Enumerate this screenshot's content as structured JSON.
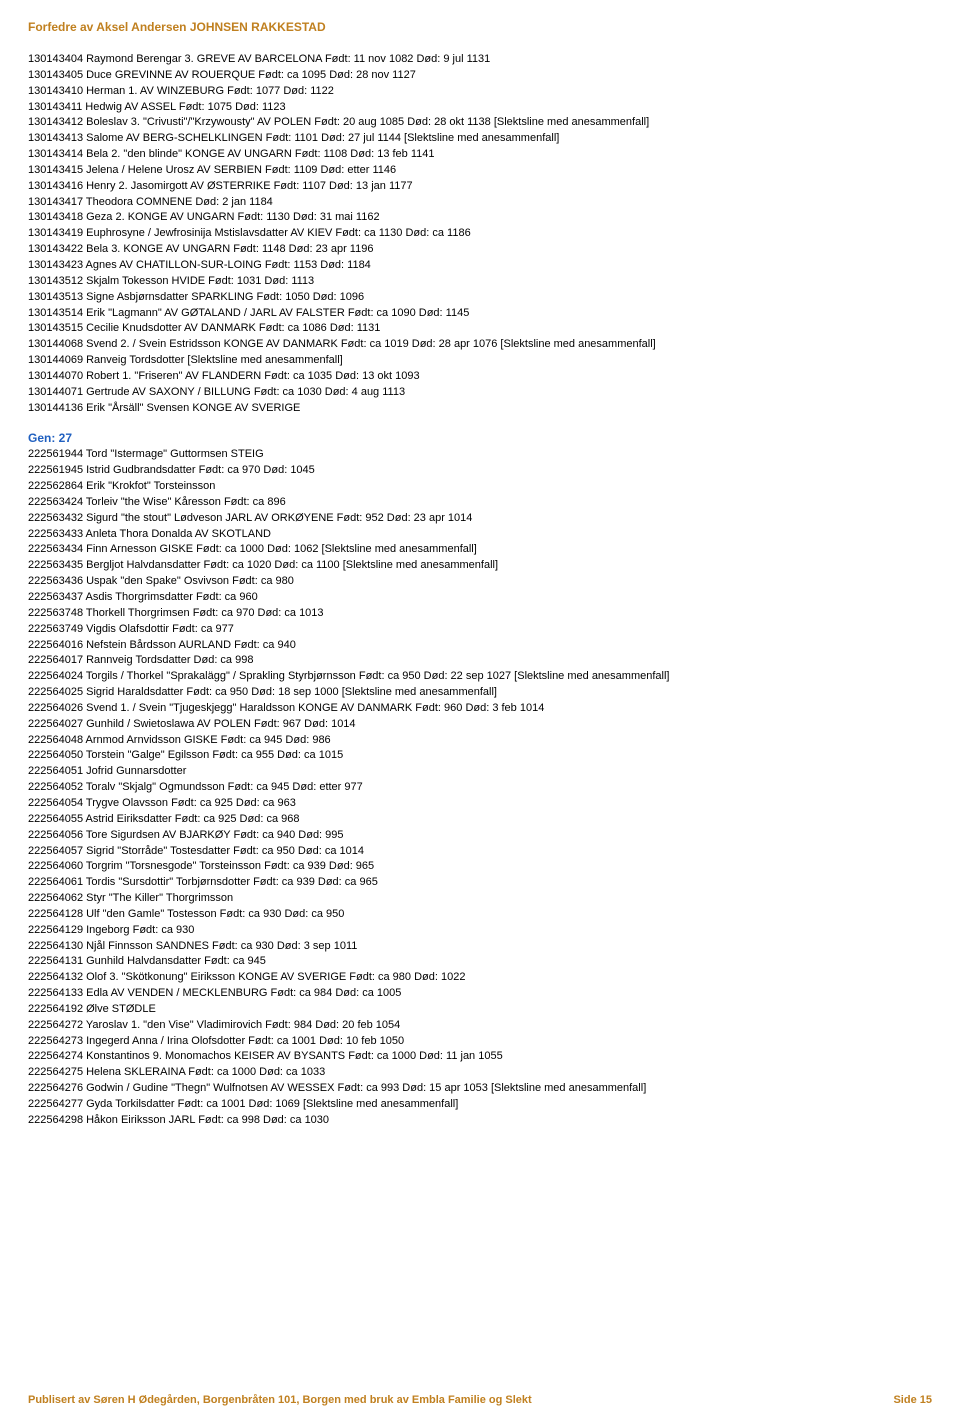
{
  "header": "Forfedre av  Aksel Andersen JOHNSEN RAKKESTAD",
  "block1": [
    "130143404  Raymond Berengar 3. GREVE AV BARCELONA     Født: 11 nov 1082   Død: 9 jul 1131",
    "130143405  Duce GREVINNE AV ROUERQUE     Født: ca 1095   Død: 28 nov 1127",
    "130143410  Herman 1. AV WINZEBURG     Født: 1077   Død: 1122",
    "130143411  Hedwig AV ASSEL     Født: 1075   Død: 1123",
    "130143412  Boleslav 3. \"Crivusti\"/\"Krzywousty\" AV POLEN     Født: 20 aug 1085   Død: 28 okt 1138       [Slektsline med anesammenfall]",
    "130143413  Salome AV BERG-SCHELKLINGEN     Født: 1101   Død: 27 jul 1144       [Slektsline med anesammenfall]",
    "130143414  Bela 2. \"den blinde\" KONGE AV UNGARN     Født: 1108   Død: 13 feb 1141",
    "130143415  Jelena / Helene Urosz AV SERBIEN     Født: 1109   Død: etter 1146",
    "130143416  Henry 2. Jasomirgott AV ØSTERRIKE     Født: 1107   Død: 13 jan 1177",
    "130143417  Theodora COMNENE     Død: 2 jan 1184",
    "130143418  Geza 2. KONGE AV UNGARN     Født: 1130   Død: 31 mai 1162",
    "130143419  Euphrosyne / Jewfrosinija Mstislavsdatter AV KIEV     Født: ca 1130   Død: ca 1186",
    "130143422  Bela 3. KONGE AV UNGARN     Født: 1148   Død: 23 apr 1196",
    "130143423  Agnes AV CHATILLON-SUR-LOING     Født: 1153   Død: 1184",
    "130143512  Skjalm Tokesson HVIDE     Født: 1031   Død: 1113",
    "130143513  Signe Asbjørnsdatter SPARKLING     Født: 1050   Død: 1096",
    "130143514  Erik \"Lagmann\" AV GØTALAND / JARL AV FALSTER     Født: ca 1090   Død: 1145",
    "130143515  Cecilie Knudsdotter AV DANMARK     Født: ca 1086   Død: 1131",
    "130144068  Svend 2. / Svein Estridsson KONGE AV DANMARK     Født: ca 1019   Død: 28 apr 1076       [Slektsline med anesammenfall]",
    "130144069  Ranveig Tordsdotter       [Slektsline med anesammenfall]",
    "130144070  Robert 1. \"Friseren\" AV FLANDERN     Født: ca 1035   Død: 13 okt 1093",
    "130144071  Gertrude AV SAXONY / BILLUNG     Født: ca 1030   Død: 4 aug 1113",
    "130144136  Erik \"Årsäll\" Svensen KONGE AV SVERIGE"
  ],
  "gen_header": "Gen:  27",
  "block2": [
    "222561944  Tord \"Istermage\" Guttormsen STEIG",
    "222561945  Istrid Gudbrandsdatter     Født: ca 970   Død: 1045",
    "222562864  Erik \"Krokfot\" Torsteinsson",
    "222563424  Torleiv \"the Wise\" Kåresson     Født: ca 896",
    "222563432  Sigurd \"the stout\" Lødveson JARL AV ORKØYENE     Født: 952   Død: 23 apr 1014",
    "222563433  Anleta Thora Donalda AV SKOTLAND",
    "222563434  Finn Arnesson GISKE     Født: ca 1000   Død: 1062       [Slektsline med anesammenfall]",
    "222563435  Bergljot Halvdansdatter     Født: ca 1020   Død: ca 1100       [Slektsline med anesammenfall]",
    "222563436  Uspak \"den Spake\" Osvivson     Født: ca 980",
    "222563437  Asdis Thorgrimsdatter     Født: ca 960",
    "222563748  Thorkell Thorgrimsen     Født: ca 970   Død: ca 1013",
    "222563749  Vigdis Olafsdottir     Født: ca 977",
    "222564016  Nefstein Bårdsson AURLAND     Født: ca 940",
    "222564017  Rannveig Tordsdatter     Død: ca 998",
    "222564024  Torgils / Thorkel \"Sprakalägg\" / Sprakling Styrbjørnsson     Født: ca 950   Død: 22 sep 1027       [Slektsline med anesammenfall]",
    "222564025  Sigrid Haraldsdatter     Født: ca 950   Død: 18 sep 1000       [Slektsline med anesammenfall]",
    "222564026  Svend 1. / Svein \"Tjugeskjegg\" Haraldsson KONGE AV DANMARK     Født: 960   Død: 3 feb 1014",
    "222564027  Gunhild / Swietoslawa AV POLEN     Født: 967   Død: 1014",
    "222564048  Arnmod Arnvidsson GISKE     Født: ca 945   Død: 986",
    "222564050  Torstein \"Galge\" Egilsson     Født: ca 955   Død: ca 1015",
    "222564051  Jofrid Gunnarsdotter",
    "222564052  Toralv \"Skjalg\" Ogmundsson     Født: ca 945   Død: etter 977",
    "222564054  Trygve Olavsson     Født: ca 925   Død: ca 963",
    "222564055  Astrid Eiriksdatter     Født: ca 925   Død: ca 968",
    "222564056  Tore Sigurdsen AV BJARKØY     Født: ca 940   Død: 995",
    "222564057  Sigrid \"Storråde\" Tostesdatter     Født: ca 950   Død: ca 1014",
    "222564060  Torgrim \"Torsnesgode\" Torsteinsson     Født: ca 939   Død: 965",
    "222564061  Tordis \"Sursdottir\" Torbjørnsdotter     Født: ca 939   Død: ca 965",
    "222564062  Styr \"The Killer\" Thorgrimsson",
    "222564128  Ulf \"den Gamle\" Tostesson     Født: ca 930   Død: ca 950",
    "222564129  Ingeborg     Født: ca 930",
    "222564130  Njål Finnsson SANDNES     Født: ca 930   Død: 3 sep 1011",
    "222564131  Gunhild Halvdansdatter     Født: ca 945",
    "222564132  Olof 3. \"Skötkonung\" Eiriksson KONGE AV SVERIGE     Født: ca 980   Død: 1022",
    "222564133  Edla AV VENDEN / MECKLENBURG     Født: ca 984   Død: ca 1005",
    "222564192  Ølve STØDLE",
    "222564272  Yaroslav 1. \"den Vise\" Vladimirovich     Født: 984   Død: 20 feb 1054",
    "222564273  Ingegerd Anna / Irina Olofsdotter     Født: ca 1001   Død: 10 feb 1050",
    "222564274  Konstantinos 9. Monomachos KEISER AV BYSANTS     Født: ca 1000   Død: 11 jan 1055",
    "222564275  Helena SKLERAINA     Født: ca 1000   Død: ca 1033",
    "222564276  Godwin / Gudine \"Thegn\" Wulfnotsen AV WESSEX     Født: ca 993   Død: 15 apr 1053       [Slektsline med anesammenfall]",
    "222564277  Gyda Torkilsdatter     Født: ca 1001   Død: 1069       [Slektsline med anesammenfall]",
    "222564298  Håkon Eiriksson JARL     Født: ca 998   Død: ca 1030"
  ],
  "footer_left": "Publisert av Søren H Ødegården, Borgenbråten 101, Borgen med bruk av Embla Familie og Slekt",
  "footer_right": "Side 15"
}
